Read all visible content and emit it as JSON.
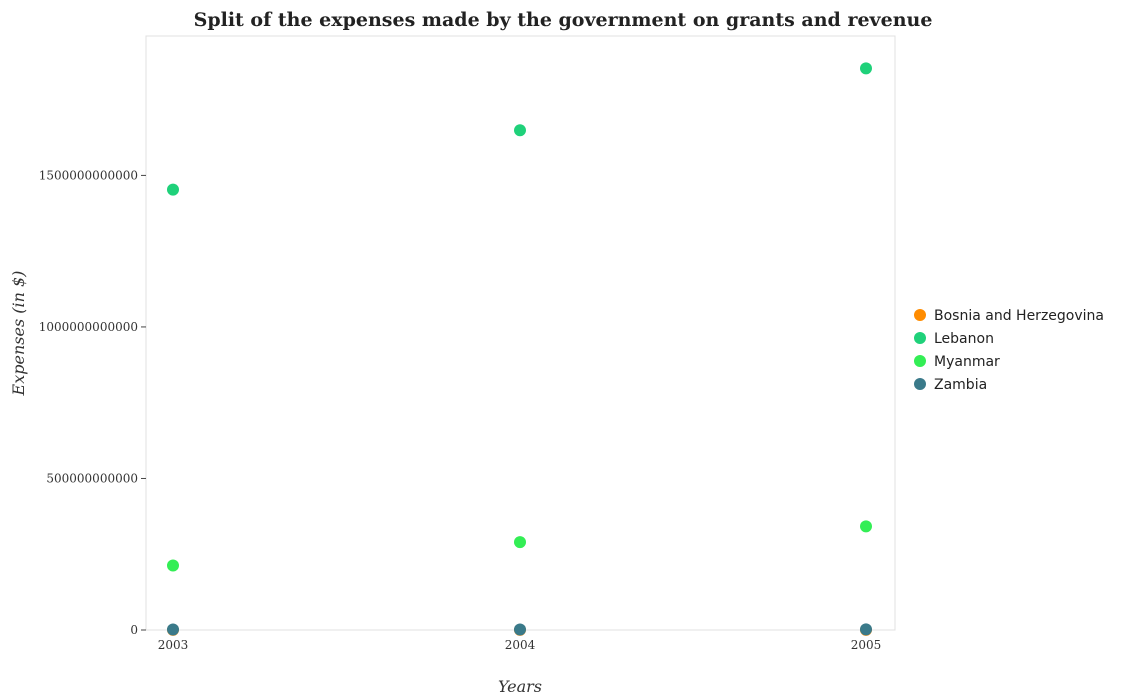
{
  "chart_data": {
    "type": "scatter",
    "title": "Split of the expenses made by the government on grants and revenue",
    "xlabel": "Years",
    "ylabel": "Expenses (in $)",
    "categories": [
      "2003",
      "2004",
      "2005"
    ],
    "ylim": [
      0,
      1960000000000
    ],
    "yticks": [
      0,
      500000000000,
      1000000000000,
      1500000000000
    ],
    "ytick_labels": [
      "0",
      "500000000000",
      "1000000000000",
      "1500000000000"
    ],
    "grid": false,
    "legend_position": "right",
    "series": [
      {
        "name": "Bosnia and Herzegovina",
        "color": "#ff8c00",
        "values": [
          350000000,
          400000000,
          450000000
        ]
      },
      {
        "name": "Lebanon",
        "color": "#1fd17a",
        "values": [
          1453000000000,
          1649000000000,
          1853000000000
        ]
      },
      {
        "name": "Myanmar",
        "color": "#33ee55",
        "values": [
          213000000000,
          290000000000,
          342000000000
        ]
      },
      {
        "name": "Zambia",
        "color": "#3a7a8a",
        "values": [
          1500000000,
          1800000000,
          2000000000
        ]
      }
    ]
  }
}
